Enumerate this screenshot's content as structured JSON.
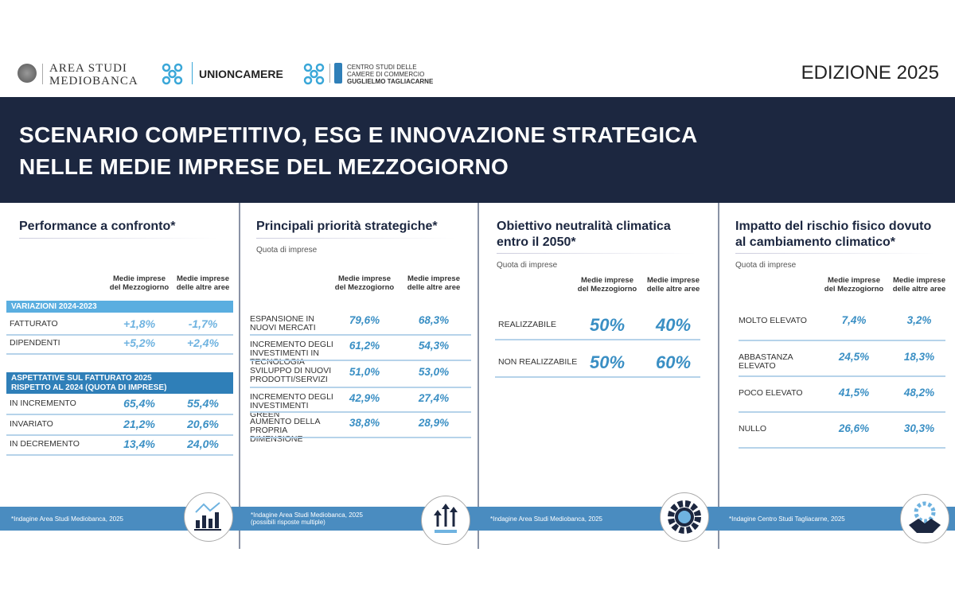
{
  "logos": {
    "mediobanca": [
      "AREA STUDI",
      "MEDIOBANCA"
    ],
    "unioncamere": "UNIONCAMERE",
    "tagliacarne": [
      "CENTRO STUDI DELLE",
      "CAMERE DI COMMERCIO",
      "GUGLIELMO TAGLIACARNE"
    ]
  },
  "edition": "EDIZIONE 2025",
  "header": {
    "line1": "SCENARIO COMPETITIVO, ESG E INNOVAZIONE STRATEGICA",
    "line2": "NELLE MEDIE IMPRESE DEL MEZZOGIORNO"
  },
  "colors": {
    "navy": "#1c2740",
    "accent": "#3a8fc4",
    "footer": "#4a8cc0"
  },
  "cols": {
    "c1": [
      "Medie imprese",
      "del Mezzogiorno"
    ],
    "c2": [
      "Medie imprese",
      "delle altre aree"
    ]
  },
  "p1": {
    "title": "Performance a confronto*",
    "bar1": "VARIAZIONI 2024-2023",
    "rows1": [
      {
        "label": "FATTURATO",
        "v1": "+1,8%",
        "v2": "-1,7%"
      },
      {
        "label": "DIPENDENTI",
        "v1": "+5,2%",
        "v2": "+2,4%"
      }
    ],
    "bar2": [
      "ASPETTATIVE SUL FATTURATO 2025",
      "RISPETTO AL 2024 (QUOTA DI IMPRESE)"
    ],
    "rows2": [
      {
        "label": "IN INCREMENTO",
        "v1": "65,4%",
        "v2": "55,4%"
      },
      {
        "label": "INVARIATO",
        "v1": "21,2%",
        "v2": "20,6%"
      },
      {
        "label": "IN DECREMENTO",
        "v1": "13,4%",
        "v2": "24,0%"
      }
    ],
    "footnote": "*Indagine Area Studi Mediobanca, 2025"
  },
  "p2": {
    "title": "Principali priorità strategiche*",
    "quota": "Quota di imprese",
    "rows": [
      {
        "label": "ESPANSIONE IN NUOVI MERCATI",
        "v1": "79,6%",
        "v2": "68,3%"
      },
      {
        "label": "INCREMENTO DEGLI INVESTIMENTI IN TECNOLOGIA",
        "v1": "61,2%",
        "v2": "54,3%"
      },
      {
        "label": "SVILUPPO DI NUOVI PRODOTTI/SERVIZI",
        "v1": "51,0%",
        "v2": "53,0%"
      },
      {
        "label": "INCREMENTO DEGLI INVESTIMENTI GREEN",
        "v1": "42,9%",
        "v2": "27,4%"
      },
      {
        "label": "AUMENTO DELLA PROPRIA DIMENSIONE",
        "v1": "38,8%",
        "v2": "28,9%"
      }
    ],
    "footnote": [
      "*Indagine Area Studi Mediobanca, 2025",
      "(possibili risposte multiple)"
    ]
  },
  "p3": {
    "title": [
      "Obiettivo neutralità climatica",
      "entro il 2050*"
    ],
    "quota": "Quota di imprese",
    "rows": [
      {
        "label": "REALIZZABILE",
        "v1": "50%",
        "v2": "40%"
      },
      {
        "label": "NON REALIZZABILE",
        "v1": "50%",
        "v2": "60%"
      }
    ],
    "footnote": "*Indagine Area Studi Mediobanca, 2025"
  },
  "p4": {
    "title": [
      "Impatto del  rischio fisico dovuto",
      "al cambiamento climatico*"
    ],
    "quota": "Quota di imprese",
    "rows": [
      {
        "label": "MOLTO ELEVATO",
        "v1": "7,4%",
        "v2": "3,2%"
      },
      {
        "label": "ABBASTANZA ELEVATO",
        "v1": "24,5%",
        "v2": "18,3%"
      },
      {
        "label": "POCO ELEVATO",
        "v1": "41,5%",
        "v2": "48,2%"
      },
      {
        "label": "NULLO",
        "v1": "26,6%",
        "v2": "30,3%"
      }
    ],
    "footnote": "*Indagine Centro Studi Tagliacarne, 2025"
  }
}
